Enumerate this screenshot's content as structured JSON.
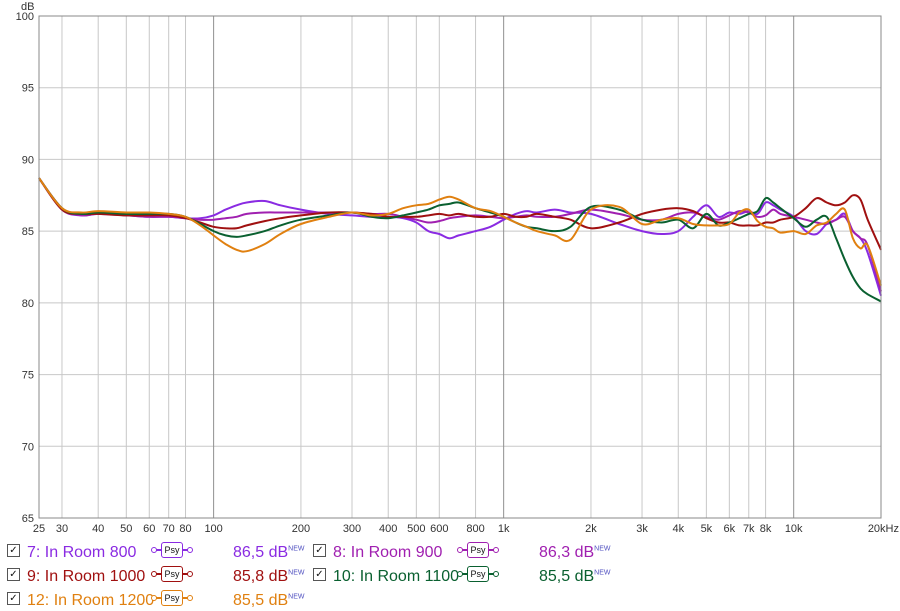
{
  "chart_data": {
    "type": "line",
    "xscale": "log",
    "xlim": [
      25,
      20000
    ],
    "ylim": [
      65,
      100
    ],
    "grid": true,
    "yunit": "dB",
    "y_ticks": [
      "65",
      "70",
      "75",
      "80",
      "85",
      "90",
      "95",
      "100"
    ],
    "x_tick_values": [
      25,
      30,
      40,
      50,
      60,
      70,
      80,
      100,
      200,
      300,
      400,
      500,
      600,
      800,
      1000,
      2000,
      3000,
      4000,
      5000,
      6000,
      7000,
      8000,
      10000,
      20000
    ],
    "x_tick_labels": [
      "25",
      "30",
      "40",
      "50",
      "60",
      "70",
      "80",
      "100",
      "200",
      "300",
      "400",
      "500",
      "600",
      "800",
      "1k",
      "2k",
      "3k",
      "4k",
      "5k",
      "6k",
      "7k",
      "8k",
      "10k",
      "20kHz"
    ],
    "x_major_values": [
      100,
      1000,
      10000
    ],
    "x": [
      25,
      30,
      35,
      40,
      50,
      60,
      70,
      80,
      90,
      100,
      110,
      120,
      130,
      150,
      170,
      200,
      250,
      300,
      350,
      400,
      450,
      500,
      550,
      600,
      650,
      700,
      800,
      900,
      1000,
      1100,
      1200,
      1300,
      1500,
      1700,
      2000,
      2500,
      3000,
      3500,
      4000,
      4500,
      5000,
      5500,
      6000,
      6500,
      7000,
      7500,
      8000,
      8500,
      9000,
      10000,
      11000,
      12000,
      13000,
      14000,
      15000,
      16000,
      17000,
      18000,
      20000
    ],
    "series": [
      {
        "name": "7: In Room 800",
        "color": "#8a2be2",
        "checkbox": "✓",
        "psy_label": "Psy",
        "level": "86,5 dB",
        "level_badge": "NEW",
        "values": [
          88.7,
          86.5,
          86.1,
          86.2,
          86.1,
          86.0,
          86.0,
          85.9,
          85.9,
          86.1,
          86.5,
          86.8,
          87.0,
          87.1,
          86.8,
          86.5,
          86.2,
          86.1,
          86.0,
          86.0,
          85.9,
          85.6,
          85.0,
          84.8,
          84.5,
          84.7,
          85.0,
          85.3,
          85.8,
          86.2,
          86.4,
          86.3,
          86.5,
          86.3,
          86.2,
          85.5,
          85.0,
          84.8,
          85.0,
          86.0,
          86.8,
          86.0,
          86.3,
          86.2,
          86.4,
          86.2,
          87.0,
          86.8,
          86.5,
          86.0,
          85.0,
          84.8,
          85.5,
          85.8,
          86.2,
          85.0,
          84.5,
          83.5,
          80.5
        ]
      },
      {
        "name": "8: In Room 900",
        "color": "#a020b0",
        "checkbox": "✓",
        "psy_label": "Psy",
        "level": "86,3 dB",
        "level_badge": "NEW",
        "values": [
          88.7,
          86.6,
          86.1,
          86.2,
          86.1,
          86.0,
          86.0,
          85.9,
          85.8,
          85.8,
          85.9,
          86.0,
          86.2,
          86.3,
          86.3,
          86.3,
          86.3,
          86.3,
          86.2,
          86.2,
          86.0,
          85.8,
          85.6,
          85.7,
          85.9,
          86.0,
          86.1,
          86.0,
          85.9,
          86.0,
          86.1,
          86.0,
          86.0,
          86.2,
          86.5,
          86.2,
          85.8,
          85.8,
          86.2,
          86.3,
          86.0,
          85.8,
          86.1,
          86.4,
          86.3,
          86.0,
          86.1,
          86.5,
          86.2,
          86.0,
          85.8,
          85.6,
          85.5,
          85.8,
          86.0,
          85.0,
          84.5,
          84.0,
          80.8
        ]
      },
      {
        "name": "9: In Room 1000",
        "color": "#a01010",
        "checkbox": "✓",
        "psy_label": "Psy",
        "level": "85,8 dB",
        "level_badge": "NEW",
        "values": [
          88.7,
          86.5,
          86.2,
          86.2,
          86.1,
          86.1,
          86.1,
          85.9,
          85.6,
          85.3,
          85.2,
          85.2,
          85.4,
          85.7,
          85.9,
          86.1,
          86.3,
          86.3,
          86.2,
          86.0,
          86.0,
          86.0,
          86.1,
          86.2,
          86.1,
          86.2,
          86.0,
          86.0,
          86.2,
          86.0,
          86.0,
          86.2,
          86.0,
          85.8,
          85.2,
          85.6,
          86.2,
          86.5,
          86.6,
          86.4,
          85.9,
          85.6,
          85.6,
          85.4,
          85.4,
          85.4,
          85.6,
          85.6,
          85.8,
          86.0,
          86.6,
          87.3,
          87.0,
          86.8,
          87.0,
          87.5,
          87.2,
          85.8,
          83.7
        ]
      },
      {
        "name": "10: In Room 1100",
        "color": "#0a6030",
        "checkbox": "✓",
        "psy_label": "Psy",
        "level": "85,5 dB",
        "level_badge": "NEW",
        "values": [
          88.7,
          86.6,
          86.2,
          86.3,
          86.2,
          86.2,
          86.2,
          86.0,
          85.5,
          85.0,
          84.7,
          84.6,
          84.7,
          85.0,
          85.4,
          85.8,
          86.1,
          86.3,
          86.0,
          85.9,
          86.1,
          86.3,
          86.5,
          86.8,
          86.9,
          87.0,
          86.6,
          86.3,
          86.0,
          85.6,
          85.3,
          85.2,
          85.0,
          85.3,
          86.7,
          86.5,
          85.8,
          85.6,
          85.8,
          85.2,
          86.2,
          85.4,
          85.6,
          85.9,
          86.2,
          86.4,
          87.3,
          87.0,
          86.6,
          85.9,
          85.3,
          85.8,
          86.0,
          84.5,
          83.0,
          81.8,
          81.0,
          80.6,
          80.1
        ]
      },
      {
        "name": "12: In Room 1200",
        "color": "#e08010",
        "checkbox": "✓",
        "psy_label": "Psy",
        "level": "85,5 dB",
        "level_badge": "NEW",
        "values": [
          88.7,
          86.6,
          86.3,
          86.4,
          86.3,
          86.3,
          86.2,
          86.0,
          85.4,
          84.7,
          84.1,
          83.7,
          83.6,
          84.1,
          84.8,
          85.5,
          86.0,
          86.3,
          86.1,
          86.2,
          86.6,
          86.8,
          86.9,
          87.2,
          87.4,
          87.2,
          86.6,
          86.4,
          86.0,
          85.6,
          85.3,
          85.0,
          84.7,
          84.4,
          86.5,
          86.7,
          85.5,
          85.8,
          85.9,
          85.5,
          85.4,
          85.4,
          85.5,
          86.3,
          86.5,
          85.7,
          85.3,
          85.2,
          84.9,
          85.0,
          84.8,
          85.4,
          85.6,
          86.2,
          86.5,
          84.5,
          83.8,
          84.0,
          81.2
        ]
      }
    ]
  }
}
